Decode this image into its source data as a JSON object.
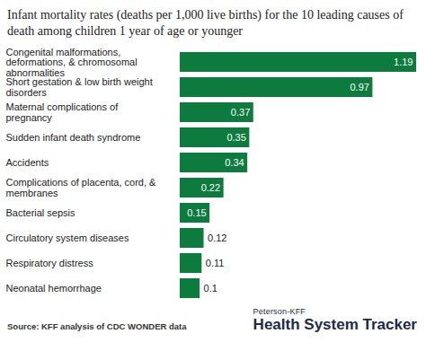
{
  "chart_data": {
    "type": "bar",
    "orientation": "horizontal",
    "title": "Infant mortality rates (deaths per 1,000 live births) for the 10 leading causes of death among children 1 year of age or younger",
    "categories": [
      "Congenital malformations, deformations, & chromosomal abnormalities",
      "Short gestation & low birth weight disorders",
      "Maternal complications of pregnancy",
      "Sudden infant death syndrome",
      "Accidents",
      "Complications of placenta, cord, & membranes",
      "Bacterial sepsis",
      "Circulatory system diseases",
      "Respiratory distress",
      "Neonatal hemorrhage"
    ],
    "values": [
      1.19,
      0.97,
      0.37,
      0.35,
      0.34,
      0.22,
      0.15,
      0.12,
      0.11,
      0.1
    ],
    "color": "#0d7b3e",
    "xlim": [
      0,
      1.19
    ],
    "data_labels": true,
    "tick_labels": "y",
    "grid": false,
    "source": "Source: KFF analysis of CDC WONDER data",
    "annotations": [
      "Peterson-KFF",
      "Health System Tracker"
    ]
  }
}
